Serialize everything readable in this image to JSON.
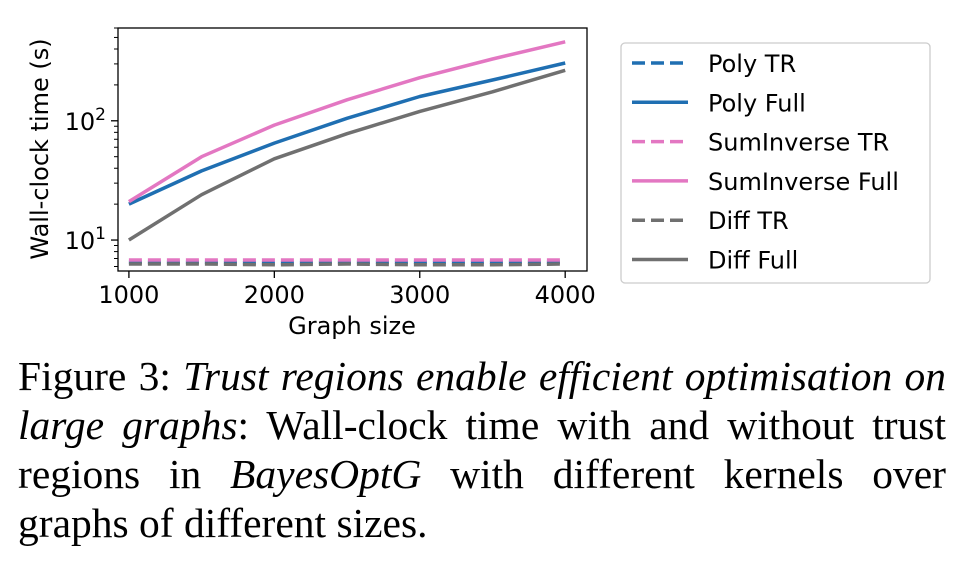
{
  "chart_data": {
    "type": "line",
    "xlabel": "Graph size",
    "ylabel": "Wall-clock time (s)",
    "yscale": "log",
    "xlim": [
      925,
      4150
    ],
    "ylim": [
      5.5,
      600
    ],
    "x_ticks": [
      1000,
      2000,
      3000,
      4000
    ],
    "x_tick_labels": [
      "1000",
      "2000",
      "3000",
      "4000"
    ],
    "y_ticks": [
      10,
      100
    ],
    "y_tick_base": "10",
    "y_tick_exponents": [
      "1",
      "2"
    ],
    "x": [
      1000,
      1500,
      2000,
      2500,
      3000,
      3500,
      4000
    ],
    "series": [
      {
        "name": "Poly TR",
        "color": "#1f6fb2",
        "dashed": true,
        "values": [
          6.5,
          6.5,
          6.4,
          6.5,
          6.5,
          6.5,
          6.5
        ]
      },
      {
        "name": "Poly Full",
        "color": "#1f6fb2",
        "dashed": false,
        "values": [
          20,
          38,
          65,
          105,
          160,
          220,
          305
        ]
      },
      {
        "name": "SumInverse TR",
        "color": "#e377c2",
        "dashed": true,
        "values": [
          6.8,
          6.8,
          6.8,
          6.8,
          6.8,
          6.8,
          6.8
        ]
      },
      {
        "name": "SumInverse Full",
        "color": "#e377c2",
        "dashed": false,
        "values": [
          21,
          50,
          92,
          150,
          230,
          330,
          460
        ]
      },
      {
        "name": "Diff TR",
        "color": "#707070",
        "dashed": true,
        "values": [
          6.3,
          6.3,
          6.2,
          6.3,
          6.2,
          6.2,
          6.3
        ]
      },
      {
        "name": "Diff Full",
        "color": "#707070",
        "dashed": false,
        "values": [
          10,
          24,
          48,
          78,
          120,
          175,
          265
        ]
      }
    ],
    "legend_position": "right"
  },
  "caption": {
    "label": "Figure 3:",
    "title": "Trust regions enable efficient optimisation on large graphs",
    "text": ": Wall-clock time with and without trust regions in ",
    "method": "BayesOptG",
    "text_end": " with different kernels over graphs of different sizes."
  }
}
